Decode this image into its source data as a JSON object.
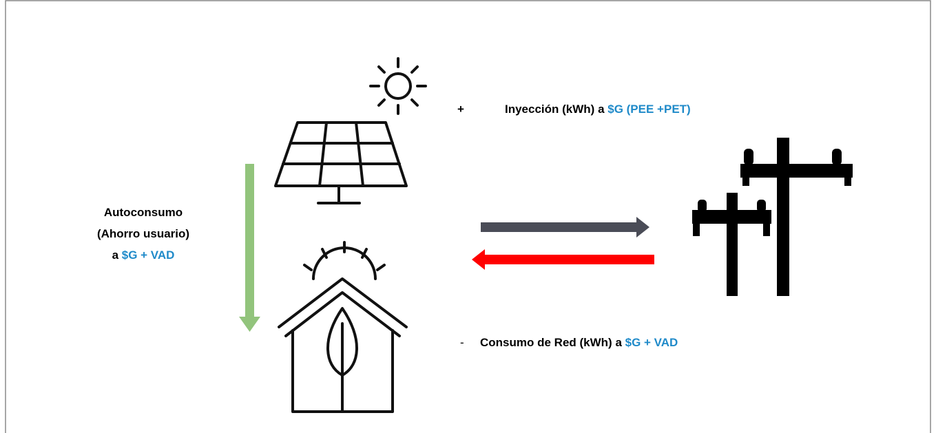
{
  "injection": {
    "sign": "+",
    "text": "Inyección (kWh) a ",
    "highlight": "$G (PEE +PET)"
  },
  "self_consumption": {
    "line1": "Autoconsumo",
    "line2": "(Ahorro usuario)",
    "prefix": "a ",
    "highlight": "$G + VAD"
  },
  "grid_consumption": {
    "sign": "-",
    "text": "Consumo de Red (kWh) a ",
    "highlight": "$G + VAD"
  }
}
